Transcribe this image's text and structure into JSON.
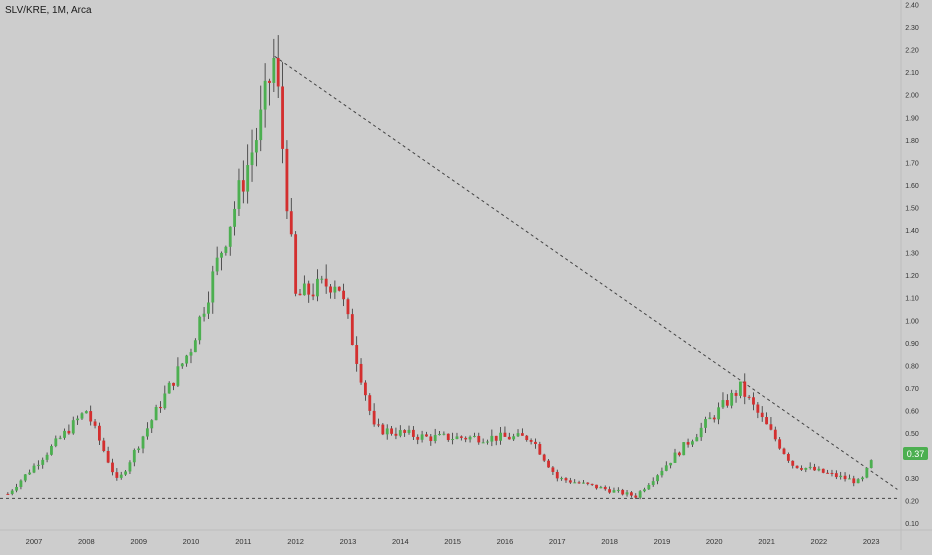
{
  "symbol_title": "SLV/KRE, 1M, Arca",
  "colors": {
    "background": "#cdcdcd",
    "up": "#4caf50",
    "down": "#d32f2f",
    "wick": "#333333",
    "axis_text": "#333333",
    "price_badge": "#4caf50",
    "trendline": "#444444"
  },
  "price_badge": "0.37",
  "chart_data": {
    "type": "candlestick",
    "title": "SLV/KRE, 1M, Arca",
    "xlabel": "",
    "ylabel": "",
    "x_ticks": [
      "2007",
      "2008",
      "2009",
      "2010",
      "2011",
      "2012",
      "2013",
      "2014",
      "2015",
      "2016",
      "2017",
      "2018",
      "2019",
      "2020",
      "2021",
      "2022",
      "2023"
    ],
    "y_ticks": [
      "0.10",
      "0.20",
      "0.30",
      "0.40",
      "0.50",
      "0.60",
      "0.70",
      "0.80",
      "0.90",
      "1.00",
      "1.10",
      "1.20",
      "1.30",
      "1.40",
      "1.50",
      "1.60",
      "1.70",
      "1.80",
      "1.90",
      "2.00",
      "2.10",
      "2.20",
      "2.30",
      "2.40"
    ],
    "ylim": [
      0.07,
      2.42
    ],
    "xlim": [
      2006.35,
      2023.55
    ],
    "last_price": 0.37,
    "grid": false,
    "key_points": [
      {
        "date": "2006.5",
        "value": 0.23
      },
      {
        "date": "2008.0",
        "value": 0.6
      },
      {
        "date": "2008.6",
        "value": 0.28
      },
      {
        "date": "2010.0",
        "value": 0.88
      },
      {
        "date": "2011.3",
        "value": 1.85
      },
      {
        "date": "2011.6",
        "value": 2.17
      },
      {
        "date": "2012.0",
        "value": 1.1
      },
      {
        "date": "2012.8",
        "value": 1.18
      },
      {
        "date": "2013.5",
        "value": 0.52
      },
      {
        "date": "2014.5",
        "value": 0.48
      },
      {
        "date": "2016.5",
        "value": 0.48
      },
      {
        "date": "2017.0",
        "value": 0.3
      },
      {
        "date": "2018.5",
        "value": 0.22
      },
      {
        "date": "2020.5",
        "value": 0.7
      },
      {
        "date": "2021.5",
        "value": 0.36
      },
      {
        "date": "2022.8",
        "value": 0.28
      },
      {
        "date": "2023.0",
        "value": 0.37
      }
    ],
    "trendlines": [
      {
        "style": "dashed",
        "from": {
          "date": "2011.6",
          "value": 2.17
        },
        "to": {
          "date": "2023.5",
          "value": 0.25
        }
      },
      {
        "style": "dashed",
        "from": {
          "date": "2006.35",
          "value": 0.21
        },
        "to": {
          "date": "2023.55",
          "value": 0.21
        }
      }
    ]
  }
}
